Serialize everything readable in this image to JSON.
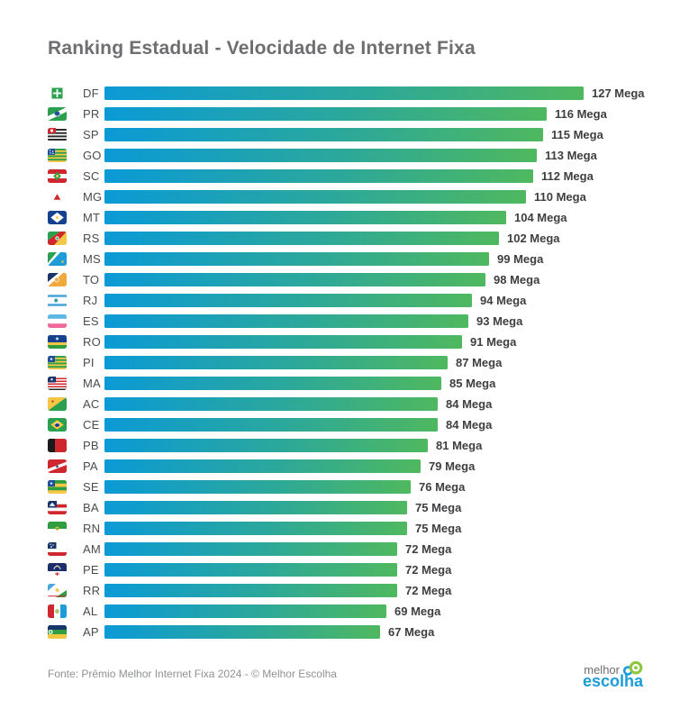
{
  "title": "Ranking Estadual - Velocidade de Internet Fixa",
  "unit": "Mega",
  "colors": {
    "bar_gradient_start": "#0a9ad6",
    "bar_gradient_mid": "#2ca89a",
    "bar_gradient_end": "#4fb85f",
    "title_text": "#6d6e71",
    "value_text": "#3d3e40",
    "footer_text": "#8f9193",
    "logo_blue": "#1b9cd9",
    "logo_green": "#8dc63f"
  },
  "chart_data": {
    "type": "bar",
    "orientation": "horizontal",
    "title": "Ranking Estadual - Velocidade de Internet Fixa",
    "xlabel": "",
    "ylabel": "",
    "unit": "Mega",
    "xlim": [
      0,
      127
    ],
    "grid": false,
    "legend": "none",
    "categories": [
      "DF",
      "PR",
      "SP",
      "GO",
      "SC",
      "MG",
      "MT",
      "RS",
      "MS",
      "TO",
      "RJ",
      "ES",
      "RO",
      "PI",
      "MA",
      "AC",
      "CE",
      "PB",
      "PA",
      "SE",
      "BA",
      "RN",
      "AM",
      "PE",
      "RR",
      "AL",
      "AP"
    ],
    "values": [
      127,
      116,
      115,
      113,
      112,
      110,
      104,
      102,
      99,
      98,
      94,
      93,
      91,
      87,
      85,
      84,
      84,
      81,
      79,
      76,
      75,
      75,
      72,
      72,
      72,
      69,
      67
    ],
    "value_labels": [
      "127 Mega",
      "116 Mega",
      "115 Mega",
      "113 Mega",
      "112 Mega",
      "110 Mega",
      "104 Mega",
      "102 Mega",
      "99 Mega",
      "98 Mega",
      "94 Mega",
      "93 Mega",
      "91 Mega",
      "87 Mega",
      "85 Mega",
      "84 Mega",
      "84 Mega",
      "81 Mega",
      "79 Mega",
      "76 Mega",
      "75 Mega",
      "75 Mega",
      "72 Mega",
      "72 Mega",
      "72 Mega",
      "69 Mega",
      "67 Mega"
    ]
  },
  "footer": {
    "source": "Fonte: Prêmio Melhor Internet Fixa 2024 - © Melhor Escolha"
  },
  "logo": {
    "word1": "melhor",
    "word2": "escolha"
  }
}
